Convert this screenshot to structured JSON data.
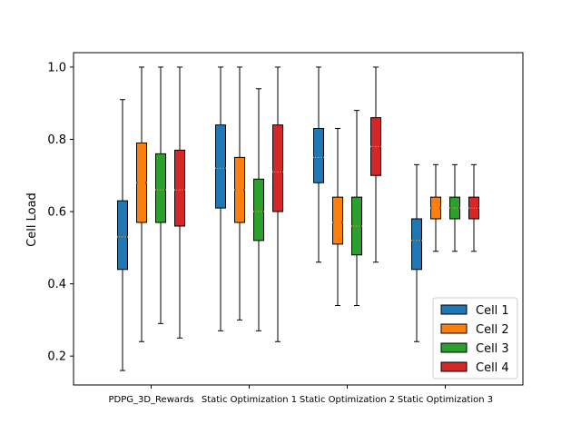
{
  "chart_data": {
    "type": "boxplot",
    "title": "",
    "xlabel": "",
    "ylabel": "Cell Load",
    "ylim": [
      0.12,
      1.04
    ],
    "yticks": [
      "0.2",
      "0.4",
      "0.6",
      "0.8",
      "1.0"
    ],
    "grid": false,
    "legend_position": "lower-right",
    "categories": [
      "PDPG_3D_Rewards",
      "Static Optimization 1",
      "Static Optimization 2",
      "Static Optimization 3"
    ],
    "series": [
      {
        "name": "Cell 1",
        "color": "#1f77b4",
        "boxes": [
          {
            "whislo": 0.16,
            "q1": 0.44,
            "med": 0.53,
            "q3": 0.63,
            "whishi": 0.91
          },
          {
            "whislo": 0.27,
            "q1": 0.61,
            "med": 0.72,
            "q3": 0.84,
            "whishi": 1.0
          },
          {
            "whislo": 0.46,
            "q1": 0.68,
            "med": 0.75,
            "q3": 0.83,
            "whishi": 1.0
          },
          {
            "whislo": 0.24,
            "q1": 0.44,
            "med": 0.52,
            "q3": 0.58,
            "whishi": 0.73
          }
        ]
      },
      {
        "name": "Cell 2",
        "color": "#ff7f0e",
        "boxes": [
          {
            "whislo": 0.24,
            "q1": 0.57,
            "med": 0.68,
            "q3": 0.79,
            "whishi": 1.0
          },
          {
            "whislo": 0.3,
            "q1": 0.57,
            "med": 0.66,
            "q3": 0.75,
            "whishi": 1.0
          },
          {
            "whislo": 0.34,
            "q1": 0.51,
            "med": 0.57,
            "q3": 0.64,
            "whishi": 0.83
          },
          {
            "whislo": 0.49,
            "q1": 0.58,
            "med": 0.61,
            "q3": 0.64,
            "whishi": 0.73
          }
        ]
      },
      {
        "name": "Cell 3",
        "color": "#2ca02c",
        "boxes": [
          {
            "whislo": 0.29,
            "q1": 0.57,
            "med": 0.66,
            "q3": 0.76,
            "whishi": 1.0
          },
          {
            "whislo": 0.27,
            "q1": 0.52,
            "med": 0.6,
            "q3": 0.69,
            "whishi": 0.94
          },
          {
            "whislo": 0.34,
            "q1": 0.48,
            "med": 0.56,
            "q3": 0.64,
            "whishi": 0.88
          },
          {
            "whislo": 0.49,
            "q1": 0.58,
            "med": 0.61,
            "q3": 0.64,
            "whishi": 0.73
          }
        ]
      },
      {
        "name": "Cell 4",
        "color": "#d62728",
        "boxes": [
          {
            "whislo": 0.25,
            "q1": 0.56,
            "med": 0.66,
            "q3": 0.77,
            "whishi": 1.0
          },
          {
            "whislo": 0.24,
            "q1": 0.6,
            "med": 0.71,
            "q3": 0.84,
            "whishi": 1.0
          },
          {
            "whislo": 0.46,
            "q1": 0.7,
            "med": 0.78,
            "q3": 0.86,
            "whishi": 1.0
          },
          {
            "whislo": 0.49,
            "q1": 0.58,
            "med": 0.61,
            "q3": 0.64,
            "whishi": 0.73
          }
        ]
      }
    ]
  }
}
